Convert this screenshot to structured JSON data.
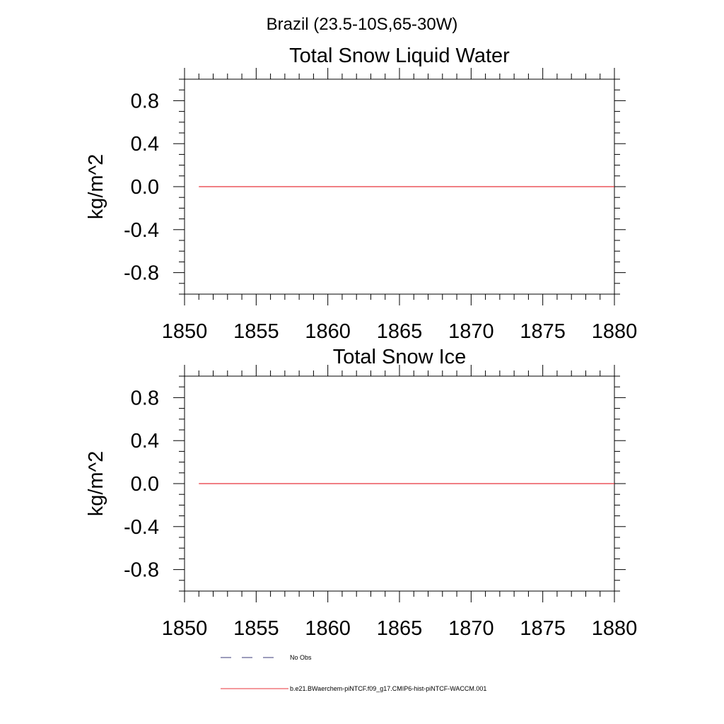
{
  "figure_title": "Brazil (23.5-10S,65-30W)",
  "legend": [
    {
      "label": "No Obs",
      "color": "#3a3a7a",
      "dash": "dashed"
    },
    {
      "label": "b.e21.BWaerchem-piNTCF.f09_g17.CMIP6-hist-piNTCF-WACCM.001",
      "color": "#e8333a",
      "dash": "solid"
    }
  ],
  "chart_data": [
    {
      "type": "line",
      "title": "Total Snow Liquid Water",
      "xlabel": "",
      "ylabel": "kg/m^2",
      "xlim": [
        1850,
        1880
      ],
      "ylim": [
        -1.0,
        1.0
      ],
      "x_ticks": [
        "1850",
        "1855",
        "1860",
        "1865",
        "1870",
        "1875",
        "1880"
      ],
      "y_ticks": [
        "0.8",
        "0.4",
        "0.0",
        "-0.4",
        "-0.8"
      ],
      "grid": false,
      "series": [
        {
          "name": "b.e21.BWaerchem-piNTCF.f09_g17.CMIP6-hist-piNTCF-WACCM.001",
          "color": "#e8333a",
          "x": [
            1851,
            1880
          ],
          "y": [
            0.0,
            0.0
          ]
        }
      ]
    },
    {
      "type": "line",
      "title": "Total Snow Ice",
      "xlabel": "",
      "ylabel": "kg/m^2",
      "xlim": [
        1850,
        1880
      ],
      "ylim": [
        -1.0,
        1.0
      ],
      "x_ticks": [
        "1850",
        "1855",
        "1860",
        "1865",
        "1870",
        "1875",
        "1880"
      ],
      "y_ticks": [
        "0.8",
        "0.4",
        "0.0",
        "-0.4",
        "-0.8"
      ],
      "grid": false,
      "series": [
        {
          "name": "b.e21.BWaerchem-piNTCF.f09_g17.CMIP6-hist-piNTCF-WACCM.001",
          "color": "#e8333a",
          "x": [
            1851,
            1880
          ],
          "y": [
            0.0,
            0.0
          ]
        }
      ]
    }
  ]
}
